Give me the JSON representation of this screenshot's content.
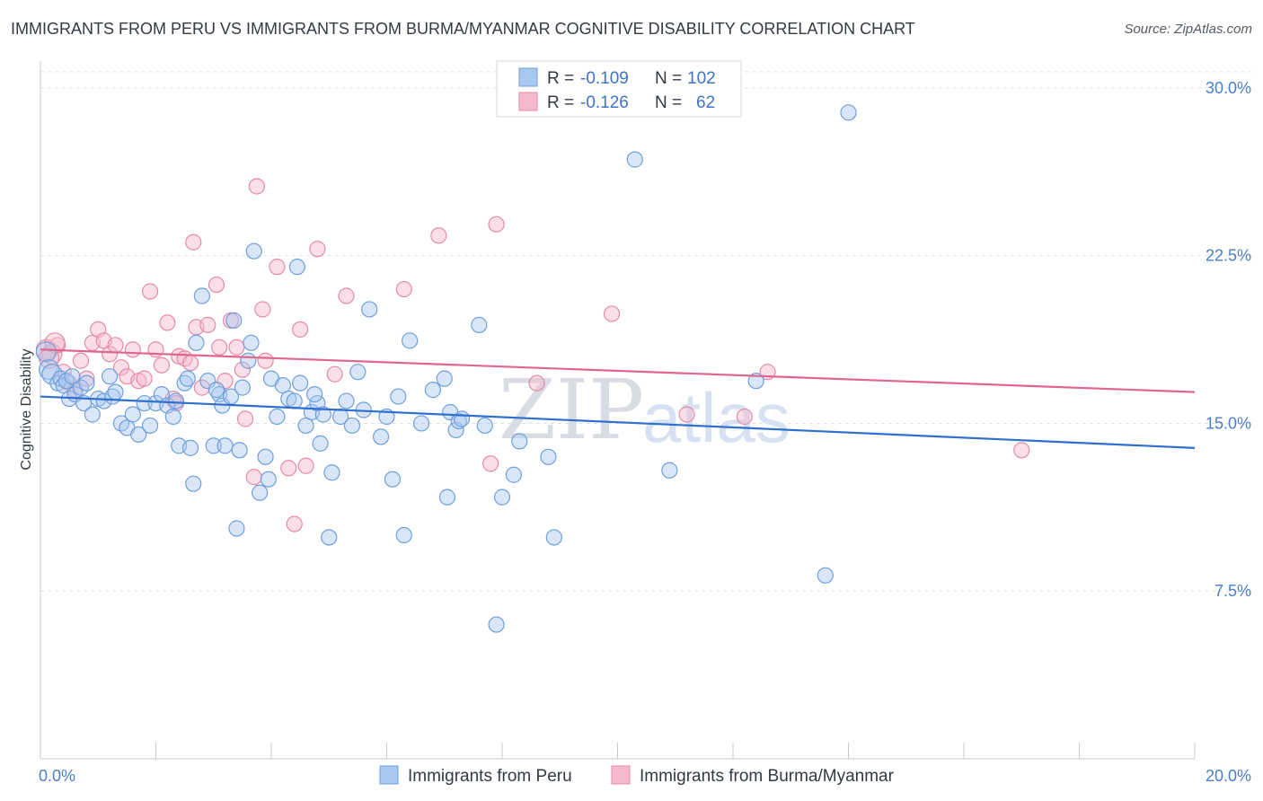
{
  "header": {
    "title": "IMMIGRANTS FROM PERU VS IMMIGRANTS FROM BURMA/MYANMAR COGNITIVE DISABILITY CORRELATION CHART",
    "source": "Source: ZipAtlas.com"
  },
  "watermark": {
    "zip": "ZIP",
    "atlas": "atlas"
  },
  "colors": {
    "peru_fill": "#a9c8ef",
    "peru_stroke": "#6f9fdc",
    "peru_line": "#2f6fce",
    "burma_fill": "#f5b9cc",
    "burma_stroke": "#e68aa8",
    "burma_line": "#e06690",
    "grid": "#dde1e6",
    "axis_text": "#4a7fc9"
  },
  "legend": {
    "rows": [
      {
        "r_label": "R =",
        "r_value": "-0.109",
        "n_label": "N =",
        "n_value": "102"
      },
      {
        "r_label": "R =",
        "r_value": "-0.126",
        "n_label": "N =",
        "n_value": "62"
      }
    ]
  },
  "chart_data": {
    "type": "scatter",
    "title": "IMMIGRANTS FROM PERU VS IMMIGRANTS FROM BURMA/MYANMAR COGNITIVE DISABILITY CORRELATION CHART",
    "xlabel": "",
    "ylabel": "Cognitive Disability",
    "xlim": [
      0,
      20
    ],
    "ylim": [
      0,
      30.8
    ],
    "x_ticks": [
      "0.0%",
      "20.0%"
    ],
    "y_ticks": [
      {
        "value": 7.5,
        "label": "7.5%"
      },
      {
        "value": 15.0,
        "label": "15.0%"
      },
      {
        "value": 22.5,
        "label": "22.5%"
      },
      {
        "value": 30.0,
        "label": "30.0%"
      }
    ],
    "grid": true,
    "legend_position": "top-center",
    "series": [
      {
        "name": "Immigrants from Peru",
        "color": "#a9c8ef",
        "trend": {
          "x": [
            0,
            20
          ],
          "y": [
            16.2,
            13.9
          ]
        },
        "points": [
          [
            0.1,
            18.2
          ],
          [
            0.15,
            17.4
          ],
          [
            0.2,
            17.2
          ],
          [
            0.3,
            16.8
          ],
          [
            0.35,
            17.0
          ],
          [
            0.4,
            16.7
          ],
          [
            0.45,
            16.9
          ],
          [
            0.5,
            16.1
          ],
          [
            0.6,
            16.3
          ],
          [
            0.7,
            16.6
          ],
          [
            0.75,
            15.9
          ],
          [
            0.8,
            16.8
          ],
          [
            0.9,
            15.4
          ],
          [
            1.0,
            16.1
          ],
          [
            1.1,
            16.0
          ],
          [
            1.2,
            17.1
          ],
          [
            1.25,
            16.2
          ],
          [
            1.4,
            15.0
          ],
          [
            1.5,
            14.8
          ],
          [
            1.6,
            15.4
          ],
          [
            1.7,
            14.5
          ],
          [
            1.8,
            15.9
          ],
          [
            1.9,
            14.9
          ],
          [
            2.0,
            15.9
          ],
          [
            2.1,
            16.3
          ],
          [
            2.2,
            15.8
          ],
          [
            2.3,
            15.3
          ],
          [
            2.4,
            14.0
          ],
          [
            2.5,
            16.8
          ],
          [
            2.55,
            17.0
          ],
          [
            2.6,
            13.9
          ],
          [
            2.65,
            12.3
          ],
          [
            2.7,
            18.6
          ],
          [
            2.8,
            20.7
          ],
          [
            2.9,
            16.9
          ],
          [
            3.0,
            14.0
          ],
          [
            3.1,
            16.3
          ],
          [
            3.15,
            15.8
          ],
          [
            3.2,
            14.0
          ],
          [
            3.3,
            16.2
          ],
          [
            3.35,
            19.6
          ],
          [
            3.4,
            10.3
          ],
          [
            3.45,
            13.8
          ],
          [
            3.5,
            16.6
          ],
          [
            3.6,
            17.8
          ],
          [
            3.65,
            18.6
          ],
          [
            3.7,
            22.7
          ],
          [
            3.8,
            11.9
          ],
          [
            3.9,
            13.5
          ],
          [
            3.95,
            12.5
          ],
          [
            4.0,
            17.0
          ],
          [
            4.1,
            15.3
          ],
          [
            4.2,
            16.7
          ],
          [
            4.3,
            16.1
          ],
          [
            4.4,
            16.0
          ],
          [
            4.45,
            22.0
          ],
          [
            4.5,
            16.8
          ],
          [
            4.6,
            14.9
          ],
          [
            4.7,
            15.5
          ],
          [
            4.8,
            15.9
          ],
          [
            4.85,
            14.1
          ],
          [
            4.9,
            15.4
          ],
          [
            5.0,
            9.9
          ],
          [
            5.05,
            12.8
          ],
          [
            5.2,
            15.3
          ],
          [
            5.3,
            16.0
          ],
          [
            5.4,
            14.9
          ],
          [
            5.5,
            17.3
          ],
          [
            5.6,
            15.6
          ],
          [
            5.7,
            20.1
          ],
          [
            5.9,
            14.4
          ],
          [
            6.0,
            15.3
          ],
          [
            6.1,
            12.5
          ],
          [
            6.2,
            16.2
          ],
          [
            6.3,
            10.0
          ],
          [
            6.4,
            18.7
          ],
          [
            6.6,
            15.0
          ],
          [
            6.8,
            16.5
          ],
          [
            7.0,
            17.0
          ],
          [
            7.05,
            11.7
          ],
          [
            7.1,
            15.5
          ],
          [
            7.2,
            14.7
          ],
          [
            7.25,
            15.1
          ],
          [
            7.3,
            15.2
          ],
          [
            7.6,
            19.4
          ],
          [
            7.7,
            14.9
          ],
          [
            7.9,
            6.0
          ],
          [
            8.0,
            11.7
          ],
          [
            8.2,
            12.7
          ],
          [
            8.3,
            14.2
          ],
          [
            8.8,
            13.5
          ],
          [
            8.9,
            9.9
          ],
          [
            10.3,
            26.8
          ],
          [
            10.9,
            12.9
          ],
          [
            12.4,
            16.9
          ],
          [
            13.6,
            8.2
          ],
          [
            14.0,
            28.9
          ],
          [
            0.55,
            17.1
          ],
          [
            1.3,
            16.4
          ],
          [
            2.35,
            16.0
          ],
          [
            3.05,
            16.5
          ],
          [
            4.75,
            16.3
          ]
        ]
      },
      {
        "name": "Immigrants from Burma/Myanmar",
        "color": "#f5b9cc",
        "trend": {
          "x": [
            0,
            20
          ],
          "y": [
            18.3,
            16.4
          ]
        },
        "points": [
          [
            0.1,
            18.3
          ],
          [
            0.2,
            18.1
          ],
          [
            0.3,
            18.5
          ],
          [
            0.4,
            17.3
          ],
          [
            0.5,
            16.8
          ],
          [
            0.6,
            16.5
          ],
          [
            0.7,
            17.8
          ],
          [
            0.8,
            17.0
          ],
          [
            0.9,
            18.6
          ],
          [
            1.0,
            19.2
          ],
          [
            1.1,
            18.7
          ],
          [
            1.2,
            18.1
          ],
          [
            1.3,
            18.5
          ],
          [
            1.4,
            17.5
          ],
          [
            1.5,
            17.1
          ],
          [
            1.6,
            18.3
          ],
          [
            1.7,
            16.9
          ],
          [
            1.8,
            17.0
          ],
          [
            1.9,
            20.9
          ],
          [
            2.0,
            18.3
          ],
          [
            2.1,
            17.6
          ],
          [
            2.2,
            19.5
          ],
          [
            2.3,
            16.1
          ],
          [
            2.35,
            15.9
          ],
          [
            2.4,
            18.0
          ],
          [
            2.5,
            17.9
          ],
          [
            2.6,
            17.7
          ],
          [
            2.65,
            23.1
          ],
          [
            2.7,
            19.3
          ],
          [
            2.8,
            16.6
          ],
          [
            2.9,
            19.4
          ],
          [
            3.05,
            21.2
          ],
          [
            3.1,
            18.4
          ],
          [
            3.2,
            16.9
          ],
          [
            3.3,
            19.6
          ],
          [
            3.4,
            18.4
          ],
          [
            3.5,
            17.4
          ],
          [
            3.55,
            15.2
          ],
          [
            3.7,
            12.6
          ],
          [
            3.75,
            25.6
          ],
          [
            3.85,
            20.1
          ],
          [
            3.9,
            17.8
          ],
          [
            4.1,
            22.0
          ],
          [
            4.3,
            13.0
          ],
          [
            4.4,
            10.5
          ],
          [
            4.5,
            19.2
          ],
          [
            4.6,
            13.1
          ],
          [
            4.8,
            22.8
          ],
          [
            5.1,
            17.2
          ],
          [
            5.3,
            20.7
          ],
          [
            6.3,
            21.0
          ],
          [
            6.9,
            23.4
          ],
          [
            7.8,
            13.2
          ],
          [
            7.9,
            23.9
          ],
          [
            8.6,
            16.8
          ],
          [
            9.9,
            19.9
          ],
          [
            11.2,
            15.4
          ],
          [
            12.2,
            15.3
          ],
          [
            12.6,
            17.3
          ],
          [
            17.0,
            13.8
          ],
          [
            0.25,
            18.6
          ],
          [
            0.15,
            17.9
          ]
        ]
      }
    ]
  }
}
